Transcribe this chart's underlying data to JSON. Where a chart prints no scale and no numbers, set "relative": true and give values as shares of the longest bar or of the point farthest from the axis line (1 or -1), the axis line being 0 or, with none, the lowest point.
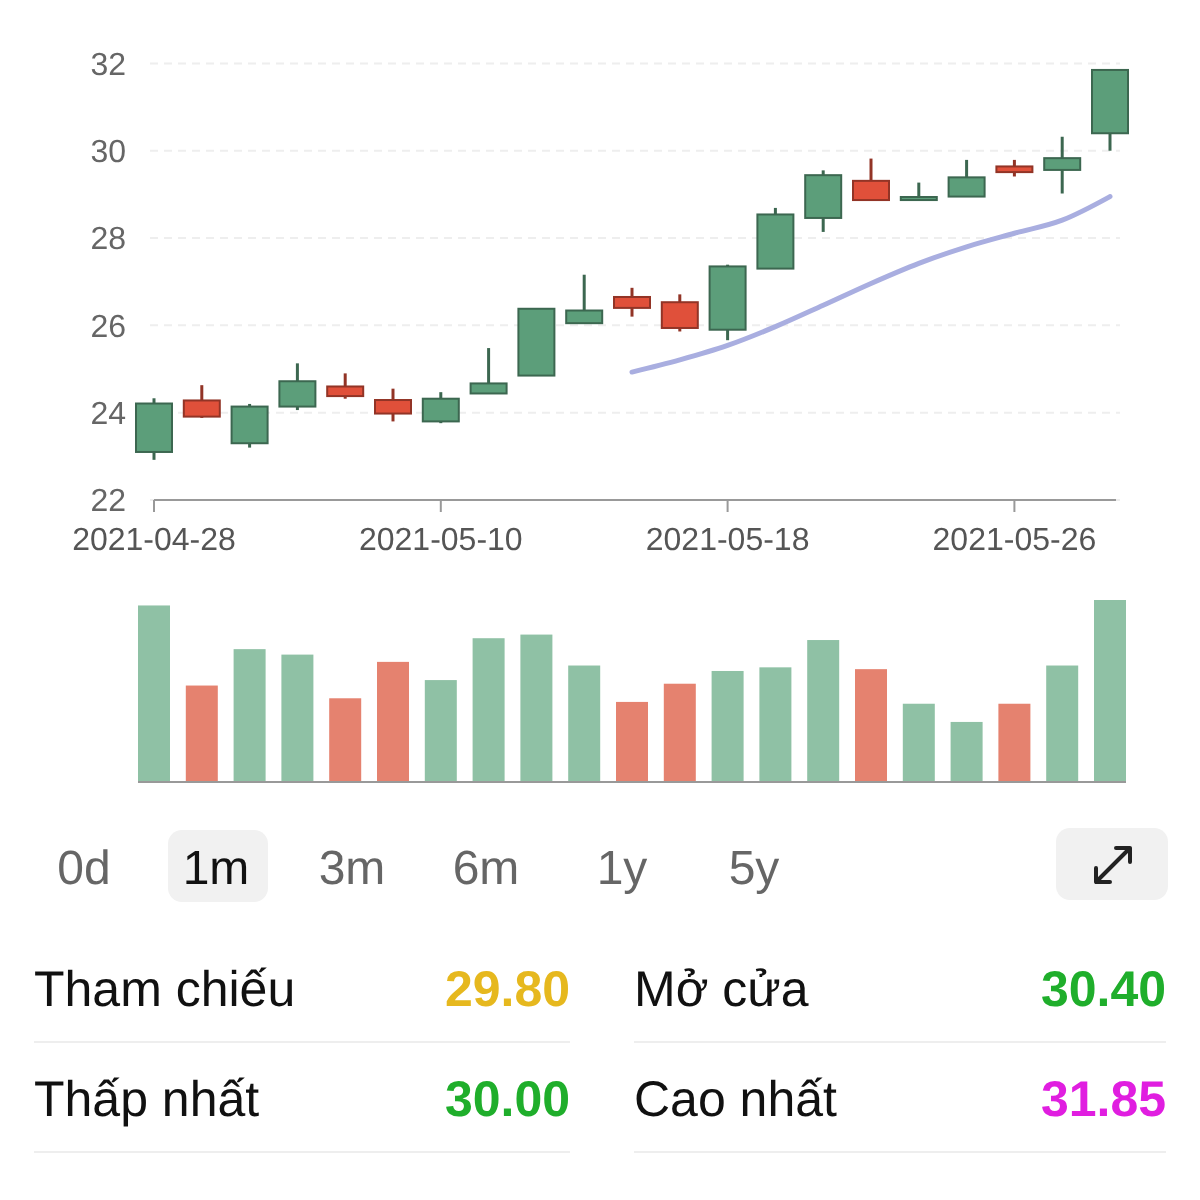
{
  "chart_data": [
    {
      "type": "candlestick",
      "categories": [
        "2021-04-28",
        null,
        null,
        null,
        null,
        null,
        "2021-05-10",
        null,
        null,
        null,
        null,
        null,
        "2021-05-18",
        null,
        null,
        null,
        null,
        null,
        "2021-05-26",
        null,
        null
      ],
      "ohlc": [
        [
          23.1,
          24.33,
          22.92,
          24.21
        ],
        [
          24.28,
          24.63,
          23.88,
          23.91
        ],
        [
          23.3,
          24.2,
          23.2,
          24.14
        ],
        [
          24.14,
          25.13,
          24.06,
          24.72
        ],
        [
          24.6,
          24.9,
          24.32,
          24.38
        ],
        [
          24.29,
          24.55,
          23.8,
          23.98
        ],
        [
          23.8,
          24.47,
          23.76,
          24.32
        ],
        [
          24.44,
          25.48,
          24.44,
          24.67
        ],
        [
          24.85,
          26.38,
          24.85,
          26.38
        ],
        [
          26.05,
          27.16,
          26.05,
          26.34
        ],
        [
          26.65,
          26.86,
          26.2,
          26.4
        ],
        [
          26.53,
          26.71,
          25.86,
          25.94
        ],
        [
          25.9,
          27.39,
          25.66,
          27.35
        ],
        [
          27.3,
          28.69,
          27.3,
          28.54
        ],
        [
          28.46,
          29.55,
          28.14,
          29.44
        ],
        [
          29.31,
          29.82,
          28.87,
          28.87
        ],
        [
          28.87,
          29.27,
          28.87,
          28.94
        ],
        [
          28.95,
          29.79,
          28.95,
          29.39
        ],
        [
          29.64,
          29.79,
          29.41,
          29.51
        ],
        [
          29.56,
          30.32,
          29.02,
          29.83
        ],
        [
          30.4,
          31.85,
          30.0,
          31.85
        ]
      ],
      "colors": [
        "#5c9e7a",
        "#e0503a",
        "#5c9e7a",
        "#5c9e7a",
        "#e0503a",
        "#e0503a",
        "#5c9e7a",
        "#5c9e7a",
        "#5c9e7a",
        "#5c9e7a",
        "#e0503a",
        "#e0503a",
        "#5c9e7a",
        "#5c9e7a",
        "#5c9e7a",
        "#e0503a",
        "#5c9e7a",
        "#5c9e7a",
        "#e0503a",
        "#5c9e7a",
        "#5c9e7a"
      ],
      "series": [
        {
          "type": "line",
          "color": "#a9aee0",
          "values": [
            null,
            null,
            null,
            null,
            null,
            null,
            null,
            null,
            null,
            null,
            24.93,
            25.21,
            25.54,
            25.97,
            26.46,
            26.96,
            27.42,
            27.8,
            28.11,
            28.41,
            28.95
          ]
        }
      ],
      "ylim": [
        22,
        32
      ],
      "yticks": [
        22,
        24,
        26,
        28,
        30,
        32
      ],
      "grid": "y"
    },
    {
      "type": "bar",
      "relative": true,
      "categories": [
        null,
        null,
        null,
        null,
        null,
        null,
        null,
        null,
        null,
        null,
        null,
        null,
        null,
        null,
        null,
        null,
        null,
        null,
        null,
        null,
        null
      ],
      "values": [
        0.97,
        0.53,
        0.73,
        0.7,
        0.46,
        0.66,
        0.56,
        0.79,
        0.81,
        0.64,
        0.44,
        0.54,
        0.61,
        0.63,
        0.78,
        0.62,
        0.43,
        0.33,
        0.43,
        0.64,
        1
      ],
      "colors": [
        "#8fc1a5",
        "#e5826f",
        "#8fc1a5",
        "#8fc1a5",
        "#e5826f",
        "#e5826f",
        "#8fc1a5",
        "#8fc1a5",
        "#8fc1a5",
        "#8fc1a5",
        "#e5826f",
        "#e5826f",
        "#8fc1a5",
        "#8fc1a5",
        "#8fc1a5",
        "#e5826f",
        "#8fc1a5",
        "#8fc1a5",
        "#e5826f",
        "#8fc1a5",
        "#8fc1a5"
      ]
    },
    {
      "type": "other",
      "annotations": [
        "0d",
        "1m",
        "3m",
        "6m",
        "1y",
        "5y"
      ],
      "categories": [
        "Tham chiếu",
        "Mở cửa",
        "Thấp nhất",
        "Cao nhất"
      ],
      "value_labels": [
        "29.80",
        "30.40",
        "30.00",
        "31.85"
      ],
      "colors": [
        "#e6b81e",
        "#1fae2b",
        "#1fae2b",
        "#e01ee0"
      ]
    }
  ]
}
